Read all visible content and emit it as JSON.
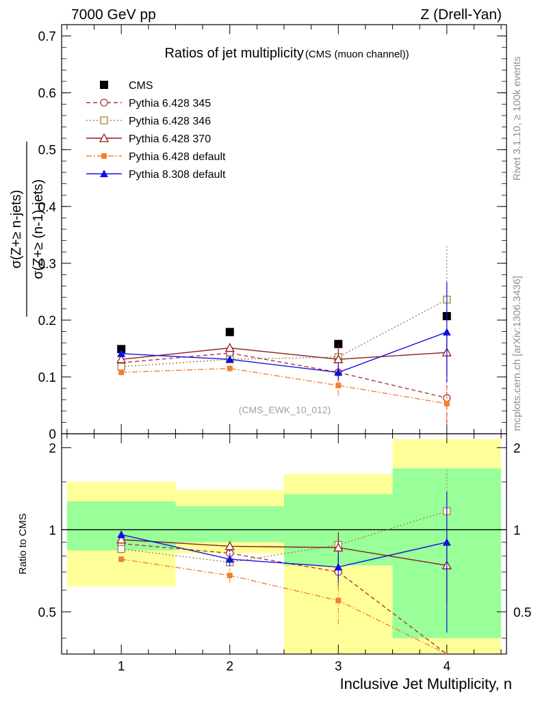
{
  "header": {
    "left": "7000 GeV pp",
    "right": "Z (Drell-Yan)"
  },
  "side_labels": {
    "rivet": "Rivet 3.1.10, ≥ 100k events",
    "mcplots": "mcplots.cern.ch [arXiv:1306.3436]"
  },
  "chart_data": [
    {
      "type": "scatter",
      "panel": "main",
      "title": "Ratios of jet multiplicity",
      "subtitle": "(CMS (muon channel))",
      "ylabel_numerator": "σ(Z+≥ n-jets)",
      "ylabel_denominator": "σ(Z+≥ (n-1)-jets)",
      "watermark": "(CMS_EWK_10_012)",
      "legend_placement": "top-left",
      "x": [
        1,
        2,
        3,
        4
      ],
      "xlim": [
        0.45,
        4.55
      ],
      "ylim": [
        0,
        0.72
      ],
      "ytick_values": [
        0,
        0.1,
        0.2,
        0.3,
        0.4,
        0.5,
        0.6,
        0.7
      ],
      "ytick_labels": [
        "0",
        "0.1",
        "0.2",
        "0.3",
        "0.4",
        "0.5",
        "0.6",
        "0.7"
      ],
      "series": [
        {
          "name": "CMS",
          "color": "#000000",
          "marker": "filled-square",
          "line": "none",
          "values": [
            0.149,
            0.179,
            0.158,
            0.207
          ],
          "errors": [
            0.003,
            0.003,
            0.004,
            0.008
          ]
        },
        {
          "name": "Pythia 6.428 345",
          "color": "#b03040",
          "marker": "open-circle",
          "line": "dashed",
          "values": [
            0.125,
            0.142,
            0.108,
            0.063
          ],
          "errors": [
            0.004,
            0.006,
            0.012,
            0.045
          ]
        },
        {
          "name": "Pythia 6.428 346",
          "color": "#a08040",
          "marker": "open-square",
          "line": "dotted",
          "values": [
            0.118,
            0.131,
            0.135,
            0.236
          ],
          "errors": [
            0.004,
            0.006,
            0.015,
            0.095
          ]
        },
        {
          "name": "Pythia 6.428 370",
          "color": "#8b1a1a",
          "marker": "open-triangle",
          "line": "solid",
          "values": [
            0.131,
            0.151,
            0.131,
            0.143
          ],
          "errors": [
            0.004,
            0.007,
            0.025,
            0.038
          ]
        },
        {
          "name": "Pythia 6.428 default",
          "color": "#f57f30",
          "marker": "filled-square-small",
          "line": "dashdot",
          "values": [
            0.108,
            0.115,
            0.085,
            0.053
          ],
          "errors": [
            0.004,
            0.006,
            0.018,
            0.03
          ]
        },
        {
          "name": "Pythia 8.308 default",
          "color": "#1010e0",
          "marker": "filled-triangle",
          "line": "solid",
          "values": [
            0.141,
            0.131,
            0.108,
            0.179
          ],
          "errors": [
            0.004,
            0.006,
            0.014,
            0.088
          ]
        }
      ]
    },
    {
      "type": "scatter",
      "panel": "ratio",
      "ylabel": "Ratio to CMS",
      "xlabel": "Inclusive Jet Multiplicity, n",
      "x": [
        1,
        2,
        3,
        4
      ],
      "xlim": [
        0.45,
        4.55
      ],
      "ylim": [
        0.35,
        2.25
      ],
      "reference_line": 1,
      "ytick_values": [
        0.5,
        1,
        2
      ],
      "ytick_labels": [
        "0.5",
        "1",
        "2"
      ],
      "xtick_values": [
        1,
        2,
        3,
        4
      ],
      "xtick_labels": [
        "1",
        "2",
        "3",
        "4"
      ],
      "uncertainty_bands": {
        "outer_color": "#ffff99",
        "inner_color": "#99ff99",
        "bins": [
          {
            "low": 0.5,
            "high": 1.5,
            "outer": [
              0.62,
              1.5
            ],
            "inner": [
              0.84,
              1.27
            ]
          },
          {
            "low": 1.5,
            "high": 2.5,
            "outer": [
              0.82,
              1.4
            ],
            "inner": [
              0.9,
              1.22
            ]
          },
          {
            "low": 2.5,
            "high": 3.5,
            "outer": [
              0.3,
              1.6
            ],
            "inner": [
              0.74,
              1.35
            ]
          },
          {
            "low": 3.5,
            "high": 4.5,
            "outer": [
              0.3,
              2.15
            ],
            "inner": [
              0.4,
              1.68
            ]
          }
        ]
      },
      "series": [
        {
          "name": "Pythia 6.428 345",
          "color": "#b03040",
          "marker": "open-circle",
          "line": "dashed",
          "values": [
            0.89,
            0.82,
            0.7,
            0.3
          ],
          "errors": [
            0.03,
            0.03,
            0.08,
            0.0
          ]
        },
        {
          "name": "Pythia 6.428 346",
          "color": "#a08040",
          "marker": "open-square",
          "line": "dotted",
          "values": [
            0.85,
            0.76,
            0.88,
            1.17
          ],
          "errors": [
            0.03,
            0.03,
            0.1,
            0.5
          ]
        },
        {
          "name": "Pythia 6.428 370",
          "color": "#8b1a1a",
          "marker": "open-triangle",
          "line": "solid",
          "values": [
            0.92,
            0.87,
            0.86,
            0.74
          ],
          "errors": [
            0.03,
            0.04,
            0.12,
            0.2
          ]
        },
        {
          "name": "Pythia 6.428 default",
          "color": "#f57f30",
          "marker": "filled-square-small",
          "line": "dashdot",
          "values": [
            0.78,
            0.68,
            0.55,
            0.3
          ],
          "errors": [
            0.02,
            0.04,
            0.1,
            0.0
          ]
        },
        {
          "name": "Pythia 8.308 default",
          "color": "#1010e0",
          "marker": "filled-triangle",
          "line": "solid",
          "values": [
            0.96,
            0.78,
            0.73,
            0.9
          ],
          "errors": [
            0.03,
            0.04,
            0.09,
            0.48
          ]
        }
      ]
    }
  ]
}
